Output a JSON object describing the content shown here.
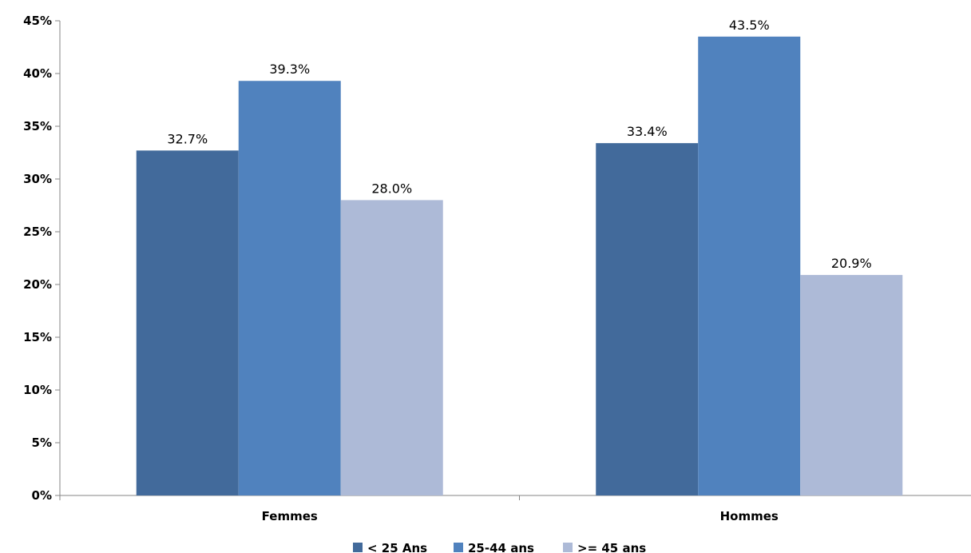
{
  "chart_data": {
    "type": "bar",
    "categories": [
      "Femmes",
      "Hommes"
    ],
    "series": [
      {
        "name": "< 25 Ans",
        "values": [
          32.7,
          33.4
        ],
        "labels": [
          "32.7%",
          "33.4%"
        ],
        "color": "#426A9B"
      },
      {
        "name": "25-44 ans",
        "values": [
          39.3,
          43.5
        ],
        "labels": [
          "39.3%",
          "43.5%"
        ],
        "color": "#5082BE"
      },
      {
        "name": ">= 45 ans",
        "values": [
          28.0,
          20.9
        ],
        "labels": [
          "28.0%",
          "20.9%"
        ],
        "color": "#ADBAD7"
      }
    ],
    "y_ticks": [
      "0%",
      "5%",
      "10%",
      "15%",
      "20%",
      "25%",
      "30%",
      "35%",
      "40%",
      "45%"
    ],
    "ylim": [
      0,
      45
    ],
    "grid": false,
    "legend_position": "bottom"
  }
}
